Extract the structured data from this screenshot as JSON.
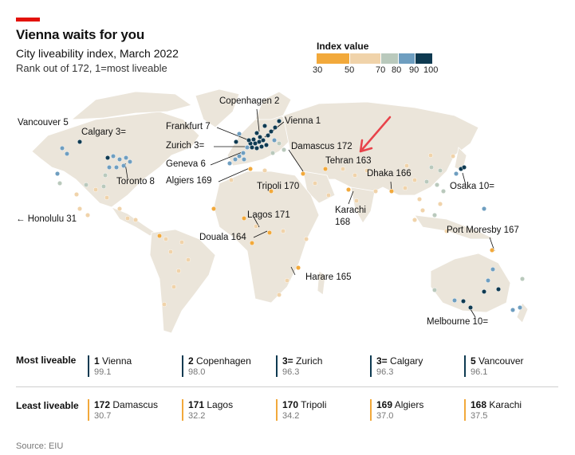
{
  "header": {
    "title": "Vienna waits for you",
    "subtitle": "City liveability index, March 2022",
    "subtitle2": "Rank out of 172, 1=most liveable"
  },
  "legend": {
    "title": "Index value",
    "ticks": [
      "30",
      "50",
      "70",
      "80",
      "90",
      "100"
    ],
    "colors": [
      "#f2a93b",
      "#f0d3aa",
      "#b9c9bc",
      "#6e9ec0",
      "#0e3a51"
    ]
  },
  "map": {
    "land_color": "#ebe5da",
    "border_color": "#ffffff",
    "annotation_color": "#e8434a",
    "labels": {
      "copenhagen": "Copenhagen 2",
      "vienna": "Vienna 1",
      "vancouver": "Vancouver 5",
      "calgary": "Calgary 3=",
      "frankfurt": "Frankfurt 7",
      "zurich": "Zurich 3=",
      "damascus": "Damascus 172",
      "tehran": "Tehran 163",
      "geneva": "Geneva 6",
      "algiers": "Algiers 169",
      "tripoli": "Tripoli 170",
      "dhaka": "Dhaka 166",
      "osaka": "Osaka 10=",
      "toronto": "Toronto 8",
      "karachi_1": "Karachi",
      "karachi_2": "168",
      "honolulu": "← Honolulu 31",
      "lagos": "Lagos 171",
      "douala": "Douala 164",
      "port_moresby": "Port Moresby 167",
      "harare": "Harare 165",
      "melbourne": "Melbourne 10="
    }
  },
  "table": {
    "most_label": "Most liveable",
    "least_label": "Least liveable",
    "most": [
      {
        "rank": "1",
        "city": "Vienna",
        "value": "99.1"
      },
      {
        "rank": "2",
        "city": "Copenhagen",
        "value": "98.0"
      },
      {
        "rank": "3=",
        "city": "Zurich",
        "value": "96.3"
      },
      {
        "rank": "3=",
        "city": "Calgary",
        "value": "96.3"
      },
      {
        "rank": "5",
        "city": "Vancouver",
        "value": "96.1"
      }
    ],
    "least": [
      {
        "rank": "172",
        "city": "Damascus",
        "value": "30.7"
      },
      {
        "rank": "171",
        "city": "Lagos",
        "value": "32.2"
      },
      {
        "rank": "170",
        "city": "Tripoli",
        "value": "34.2"
      },
      {
        "rank": "169",
        "city": "Algiers",
        "value": "37.0"
      },
      {
        "rank": "168",
        "city": "Karachi",
        "value": "37.5"
      }
    ]
  },
  "source": "Source: EIU",
  "chart_data": {
    "type": "scatter",
    "title": "Vienna waits for you",
    "subtitle": "City liveability index, March 2022",
    "color_scale": {
      "min": 30,
      "max": 100,
      "ticks": [
        30,
        50,
        70,
        80,
        90,
        100
      ]
    },
    "series": [
      {
        "name": "Most liveable",
        "cities": [
          "Vienna",
          "Copenhagen",
          "Zurich",
          "Calgary",
          "Vancouver"
        ],
        "values": [
          99.1,
          98.0,
          96.3,
          96.3,
          96.1
        ]
      },
      {
        "name": "Least liveable",
        "cities": [
          "Damascus",
          "Lagos",
          "Tripoli",
          "Algiers",
          "Karachi"
        ],
        "values": [
          30.7,
          32.2,
          34.2,
          37.0,
          37.5
        ]
      }
    ],
    "labelled_ranks": {
      "Vienna": 1,
      "Copenhagen": 2,
      "Zurich": "3=",
      "Calgary": "3=",
      "Vancouver": 5,
      "Geneva": 6,
      "Frankfurt": 7,
      "Toronto": 8,
      "Osaka": "10=",
      "Melbourne": "10=",
      "Honolulu": 31,
      "Tehran": 163,
      "Douala": 164,
      "Harare": 165,
      "Dhaka": 166,
      "Port Moresby": 167,
      "Karachi": 168,
      "Algiers": 169,
      "Tripoli": 170,
      "Lagos": 171,
      "Damascus": 172
    }
  }
}
